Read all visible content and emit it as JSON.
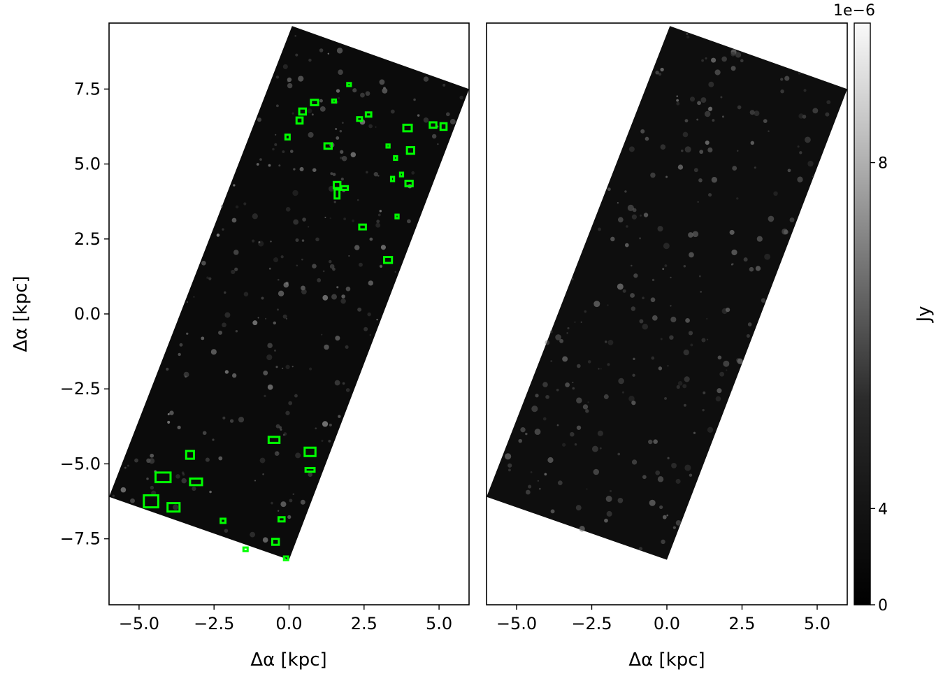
{
  "colors": {
    "box": "#00ff00",
    "frame": "#000000",
    "background": "#ffffff",
    "image_dark": "#0b0b0b"
  },
  "chart_data": [
    {
      "type": "heatmap",
      "panel": "left",
      "xlabel": "Δα [kpc]",
      "ylabel": "Δα [kpc]",
      "xlim": [
        -6.0,
        6.0
      ],
      "ylim": [
        -9.7,
        9.7
      ],
      "xticks": [
        -5.0,
        -2.5,
        0.0,
        2.5,
        5.0
      ],
      "xtick_labels": [
        "−5.0",
        "−2.5",
        "0.0",
        "2.5",
        "5.0"
      ],
      "yticks": [
        7.5,
        5.0,
        2.5,
        0.0,
        -2.5,
        -5.0,
        -7.5
      ],
      "ytick_labels": [
        "7.5",
        "5.0",
        "2.5",
        "0.0",
        "−2.5",
        "−5.0",
        "−7.5"
      ],
      "footprint": [
        [
          0.1,
          9.6
        ],
        [
          6.0,
          7.5
        ],
        [
          0.0,
          -8.2
        ],
        [
          -6.0,
          -6.1
        ]
      ],
      "boxes": [
        {
          "x": 2.0,
          "y": 7.65,
          "w": 0.12,
          "h": 0.1
        },
        {
          "x": 1.5,
          "y": 7.1,
          "w": 0.12,
          "h": 0.1
        },
        {
          "x": 0.85,
          "y": 7.05,
          "w": 0.24,
          "h": 0.18
        },
        {
          "x": 0.45,
          "y": 6.75,
          "w": 0.22,
          "h": 0.2
        },
        {
          "x": 0.35,
          "y": 6.45,
          "w": 0.2,
          "h": 0.2
        },
        {
          "x": 2.65,
          "y": 6.65,
          "w": 0.18,
          "h": 0.14
        },
        {
          "x": 2.35,
          "y": 6.5,
          "w": 0.16,
          "h": 0.12
        },
        {
          "x": 3.95,
          "y": 6.2,
          "w": 0.28,
          "h": 0.22
        },
        {
          "x": 4.8,
          "y": 6.3,
          "w": 0.22,
          "h": 0.18
        },
        {
          "x": 5.15,
          "y": 6.25,
          "w": 0.2,
          "h": 0.22
        },
        {
          "x": -0.05,
          "y": 5.9,
          "w": 0.14,
          "h": 0.16
        },
        {
          "x": 1.3,
          "y": 5.6,
          "w": 0.24,
          "h": 0.18
        },
        {
          "x": 3.3,
          "y": 5.6,
          "w": 0.1,
          "h": 0.1
        },
        {
          "x": 4.05,
          "y": 5.45,
          "w": 0.24,
          "h": 0.22
        },
        {
          "x": 3.55,
          "y": 5.2,
          "w": 0.1,
          "h": 0.12
        },
        {
          "x": 3.75,
          "y": 4.65,
          "w": 0.1,
          "h": 0.12
        },
        {
          "x": 3.45,
          "y": 4.5,
          "w": 0.1,
          "h": 0.14
        },
        {
          "x": 4.0,
          "y": 4.35,
          "w": 0.24,
          "h": 0.18
        },
        {
          "x": 1.6,
          "y": 4.3,
          "w": 0.22,
          "h": 0.2
        },
        {
          "x": 1.85,
          "y": 4.2,
          "w": 0.22,
          "h": 0.12
        },
        {
          "x": 1.6,
          "y": 4.0,
          "w": 0.16,
          "h": 0.3
        },
        {
          "x": 3.6,
          "y": 3.25,
          "w": 0.1,
          "h": 0.12
        },
        {
          "x": 2.45,
          "y": 2.9,
          "w": 0.22,
          "h": 0.16
        },
        {
          "x": 3.3,
          "y": 1.8,
          "w": 0.26,
          "h": 0.2
        },
        {
          "x": -0.5,
          "y": -4.2,
          "w": 0.36,
          "h": 0.2
        },
        {
          "x": 0.7,
          "y": -4.6,
          "w": 0.36,
          "h": 0.28
        },
        {
          "x": -3.3,
          "y": -4.7,
          "w": 0.26,
          "h": 0.26
        },
        {
          "x": 0.7,
          "y": -5.2,
          "w": 0.3,
          "h": 0.12
        },
        {
          "x": -4.2,
          "y": -5.45,
          "w": 0.5,
          "h": 0.32
        },
        {
          "x": -3.1,
          "y": -5.6,
          "w": 0.4,
          "h": 0.22
        },
        {
          "x": -4.6,
          "y": -6.25,
          "w": 0.48,
          "h": 0.4
        },
        {
          "x": -3.85,
          "y": -6.45,
          "w": 0.4,
          "h": 0.28
        },
        {
          "x": -2.2,
          "y": -6.9,
          "w": 0.16,
          "h": 0.14
        },
        {
          "x": -0.25,
          "y": -6.85,
          "w": 0.2,
          "h": 0.14
        },
        {
          "x": -0.45,
          "y": -7.6,
          "w": 0.22,
          "h": 0.2
        },
        {
          "x": -1.45,
          "y": -7.85,
          "w": 0.14,
          "h": 0.12
        },
        {
          "x": -0.1,
          "y": -8.15,
          "w": 0.14,
          "h": 0.12
        }
      ]
    },
    {
      "type": "heatmap",
      "panel": "right",
      "xlabel": "Δα [kpc]",
      "ylabel": "",
      "xlim": [
        -6.0,
        6.0
      ],
      "ylim": [
        -9.7,
        9.7
      ],
      "xticks": [
        -5.0,
        -2.5,
        0.0,
        2.5,
        5.0
      ],
      "xtick_labels": [
        "−5.0",
        "−2.5",
        "0.0",
        "2.5",
        "5.0"
      ],
      "footprint": [
        [
          0.1,
          9.6
        ],
        [
          6.0,
          7.5
        ],
        [
          0.0,
          -8.2
        ],
        [
          -6.0,
          -6.1
        ]
      ]
    }
  ],
  "colorbar": {
    "label": "Jy",
    "offset_text": "1e−6",
    "ticks": [
      0,
      4,
      8
    ],
    "tick_labels": [
      "0",
      "4",
      "8"
    ],
    "range": [
      0,
      9.0
    ],
    "colormap": "gray (nonlinear stretch)"
  }
}
